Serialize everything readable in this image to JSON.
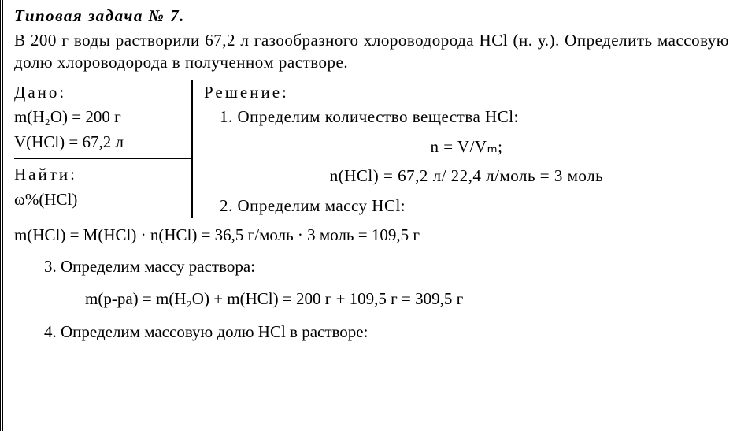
{
  "title": "Типовая задача № 7.",
  "problem": "В 200 г воды растворили 67,2 л газообразного хлороводорода HCl (н. у.). Определить массовую долю хлороводорода в полученном растворе.",
  "given_label": "Дано:",
  "given_lines": {
    "l1": "m(H₂O) = 200 г",
    "l2": "V(HCl) = 67,2 л"
  },
  "find_label": "Найти:",
  "find_line": "ω%(HCl)",
  "solution_label": "Решение:",
  "steps": {
    "s1": "1. Определим количество вещества HCl:",
    "f1": "n = V/Vₘ;",
    "f2": "n(HCl) = 67,2 л/ 22,4 л/моль = 3 моль",
    "s2": "2. Определим массу HCl:",
    "f3": "m(HCl) = M(HCl) · n(HCl) = 36,5 г/моль · 3 моль = 109,5 г",
    "s3": "3. Определим массу раствора:",
    "f4": "m(р-ра) = m(H₂O) + m(HCl) = 200 г + 109,5 г = 309,5 г",
    "s4": "4. Определим массовую долю HCl в растворе:"
  }
}
